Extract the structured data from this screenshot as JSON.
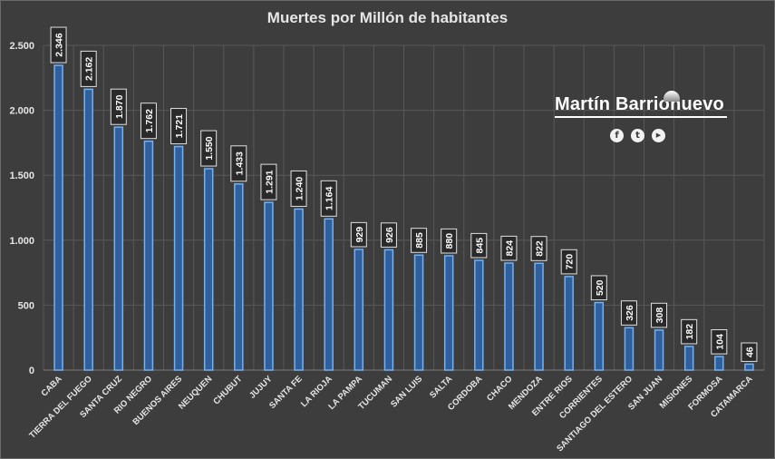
{
  "chart_data": {
    "type": "bar",
    "title": "Muertes por Millón de habitantes",
    "xlabel": "",
    "ylabel": "",
    "ylim": [
      0,
      2500
    ],
    "yticks": [
      0,
      500,
      1000,
      1500,
      2000,
      2500
    ],
    "ytick_labels": [
      "0",
      "500",
      "1.000",
      "1.500",
      "2.000",
      "2.500"
    ],
    "grid": true,
    "categories": [
      "CABA",
      "TIERRA DEL FUEGO",
      "SANTA CRUZ",
      "RIO NEGRO",
      "BUENOS AIRES",
      "NEUQUEN",
      "CHUBUT",
      "JUJUY",
      "SANTA FE",
      "LA RIOJA",
      "LA PAMPA",
      "TUCUMAN",
      "SAN LUIS",
      "SALTA",
      "CORDOBA",
      "CHACO",
      "MENDOZA",
      "ENTRE RIOS",
      "CORRIENTES",
      "SANTIAGO DEL ESTERO",
      "SAN JUAN",
      "MISIONES",
      "FORMOSA",
      "CATAMARCA"
    ],
    "values": [
      2346,
      2162,
      1870,
      1762,
      1721,
      1550,
      1433,
      1291,
      1240,
      1164,
      929,
      926,
      885,
      880,
      845,
      824,
      822,
      720,
      520,
      326,
      308,
      182,
      104,
      46
    ],
    "data_labels": [
      "2.346",
      "2.162",
      "1.870",
      "1.762",
      "1.721",
      "1.550",
      "1.433",
      "1.291",
      "1.240",
      "1.164",
      "929",
      "926",
      "885",
      "880",
      "845",
      "824",
      "822",
      "720",
      "520",
      "326",
      "308",
      "182",
      "104",
      "46"
    ]
  },
  "brand": {
    "name": "Martín Barrionuevo",
    "icons": [
      "facebook-icon",
      "twitter-icon",
      "youtube-icon"
    ],
    "icon_glyphs": [
      "f",
      "t",
      "▶"
    ]
  },
  "colors": {
    "background": "#3d3d3d",
    "bar_fill": "#2f5f9c",
    "bar_edge": "#74b2f2",
    "grid": "#585858",
    "text": "#e6e6e6"
  }
}
